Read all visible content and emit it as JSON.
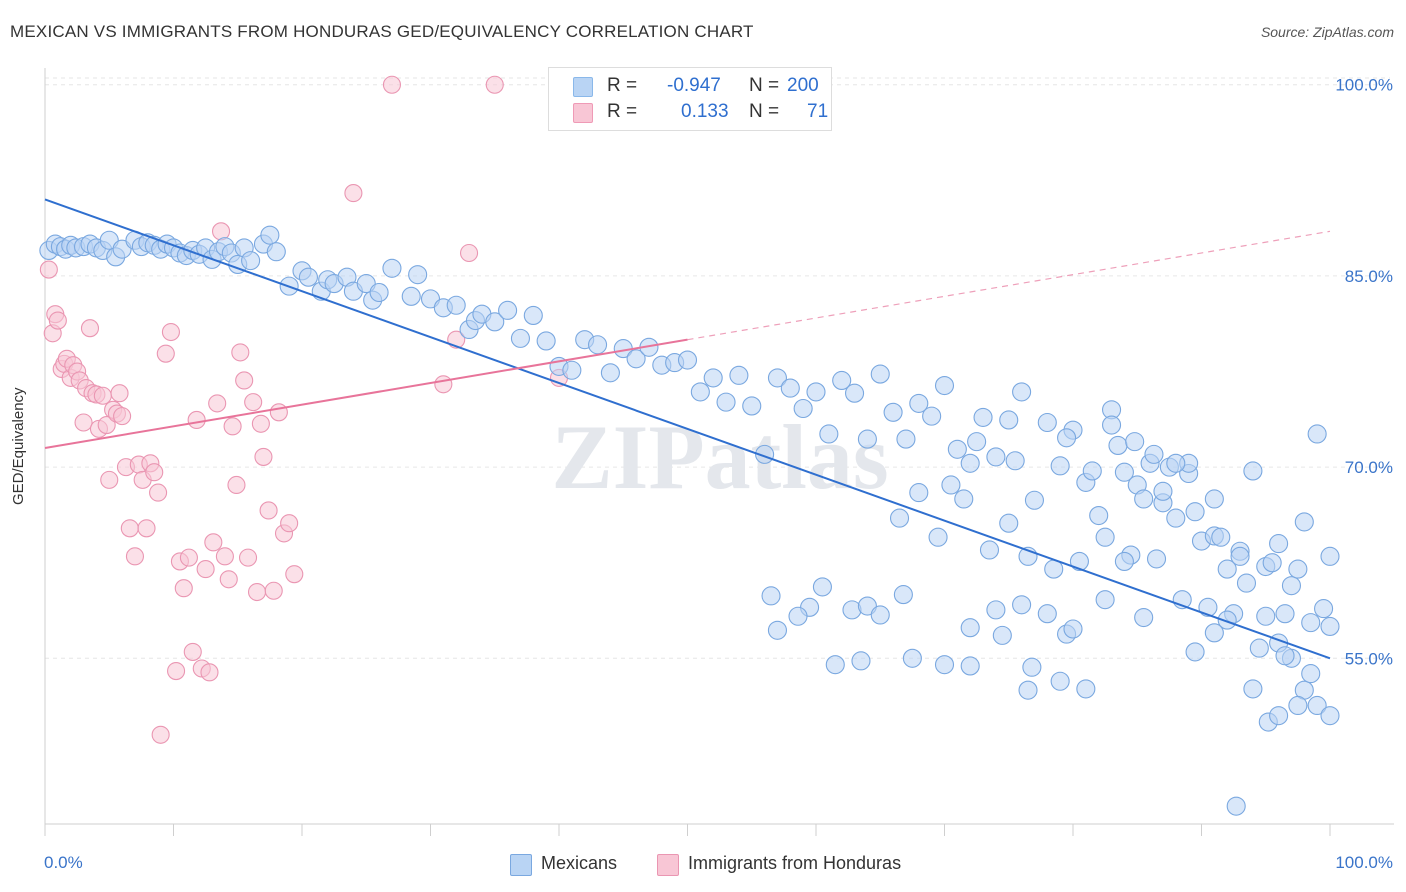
{
  "title": "MEXICAN VS IMMIGRANTS FROM HONDURAS GED/EQUIVALENCY CORRELATION CHART",
  "source": "Source: ZipAtlas.com",
  "watermark": "ZIPatlas",
  "stats": [
    {
      "r_label": "R =",
      "r_value": "-0.947",
      "n_label": "N =",
      "n_value": "200",
      "color": "#8ab8ea",
      "fill": "#b9d4f4"
    },
    {
      "r_label": "R =",
      "r_value": "0.133",
      "n_label": "N =",
      "n_value": "71",
      "color": "#ef9ab6",
      "fill": "#f8c6d5"
    }
  ],
  "legend": [
    {
      "label": "Mexicans",
      "color": "#b9d4f4",
      "stroke": "#7aa8e0"
    },
    {
      "label": "Immigrants from Honduras",
      "color": "#f8c6d5",
      "stroke": "#ea96b2"
    }
  ],
  "chart_data": {
    "type": "scatter",
    "title": "MEXICAN VS IMMIGRANTS FROM HONDURAS GED/EQUIVALENCY CORRELATION CHART",
    "xlabel": "",
    "ylabel": "GED/Equivalency",
    "xlim": [
      0,
      100
    ],
    "ylim": [
      42,
      101
    ],
    "x_tick_labels": [
      "0.0%",
      "100.0%"
    ],
    "y_ticks": [
      55,
      70,
      85,
      100
    ],
    "y_tick_labels": [
      "55.0%",
      "70.0%",
      "85.0%",
      "100.0%"
    ],
    "grid": true,
    "legend_position": "bottom-center",
    "series": [
      {
        "name": "Mexicans",
        "color": "#7aa8e0",
        "trend": {
          "x": [
            0,
            100
          ],
          "y": [
            91.0,
            55.0
          ]
        },
        "points": [
          [
            0.3,
            87.0
          ],
          [
            0.8,
            87.5
          ],
          [
            1.2,
            87.3
          ],
          [
            1.6,
            87.1
          ],
          [
            2.0,
            87.4
          ],
          [
            2.4,
            87.2
          ],
          [
            3.0,
            87.3
          ],
          [
            3.5,
            87.5
          ],
          [
            4.0,
            87.2
          ],
          [
            4.5,
            87.0
          ],
          [
            5.0,
            87.8
          ],
          [
            5.5,
            86.5
          ],
          [
            6.0,
            87.1
          ],
          [
            7.0,
            87.8
          ],
          [
            7.5,
            87.3
          ],
          [
            8.0,
            87.6
          ],
          [
            8.5,
            87.4
          ],
          [
            9.0,
            87.1
          ],
          [
            9.5,
            87.5
          ],
          [
            10.0,
            87.2
          ],
          [
            10.5,
            86.8
          ],
          [
            11.0,
            86.6
          ],
          [
            11.5,
            87.0
          ],
          [
            12.0,
            86.7
          ],
          [
            12.5,
            87.2
          ],
          [
            13.0,
            86.3
          ],
          [
            13.5,
            86.9
          ],
          [
            14.0,
            87.3
          ],
          [
            14.5,
            86.8
          ],
          [
            15.0,
            85.9
          ],
          [
            15.5,
            87.2
          ],
          [
            16.0,
            86.2
          ],
          [
            17.0,
            87.5
          ],
          [
            17.5,
            88.2
          ],
          [
            18.0,
            86.9
          ],
          [
            19.0,
            84.2
          ],
          [
            20.0,
            85.4
          ],
          [
            20.5,
            84.9
          ],
          [
            21.5,
            83.8
          ],
          [
            22.0,
            84.7
          ],
          [
            22.5,
            84.4
          ],
          [
            23.5,
            84.9
          ],
          [
            24.0,
            83.8
          ],
          [
            25.0,
            84.4
          ],
          [
            25.5,
            83.1
          ],
          [
            26.0,
            83.7
          ],
          [
            27.0,
            85.6
          ],
          [
            28.5,
            83.4
          ],
          [
            29.0,
            85.1
          ],
          [
            30.0,
            83.2
          ],
          [
            31.0,
            82.5
          ],
          [
            32.0,
            82.7
          ],
          [
            33.0,
            80.8
          ],
          [
            33.5,
            81.5
          ],
          [
            34.0,
            82.0
          ],
          [
            35.0,
            81.4
          ],
          [
            36.0,
            82.3
          ],
          [
            37.0,
            80.1
          ],
          [
            38.0,
            81.9
          ],
          [
            39.0,
            79.9
          ],
          [
            40.0,
            77.9
          ],
          [
            41.0,
            77.6
          ],
          [
            42.0,
            80.0
          ],
          [
            43.0,
            79.6
          ],
          [
            44.0,
            77.4
          ],
          [
            45.0,
            79.3
          ],
          [
            46.0,
            78.5
          ],
          [
            47.0,
            79.4
          ],
          [
            48.0,
            78.0
          ],
          [
            49.0,
            78.2
          ],
          [
            50.0,
            78.4
          ],
          [
            51.0,
            75.9
          ],
          [
            52.0,
            77.0
          ],
          [
            53.0,
            75.1
          ],
          [
            54.0,
            77.2
          ],
          [
            55.0,
            74.8
          ],
          [
            56.0,
            71.0
          ],
          [
            57.0,
            77.0
          ],
          [
            58.0,
            76.2
          ],
          [
            59.0,
            74.6
          ],
          [
            60.0,
            75.9
          ],
          [
            61.0,
            72.6
          ],
          [
            62.0,
            76.8
          ],
          [
            63.0,
            75.8
          ],
          [
            64.0,
            72.2
          ],
          [
            65.0,
            77.3
          ],
          [
            66.0,
            74.3
          ],
          [
            67.0,
            72.2
          ],
          [
            68.0,
            75.0
          ],
          [
            69.0,
            74.0
          ],
          [
            70.0,
            76.4
          ],
          [
            71.0,
            71.4
          ],
          [
            72.0,
            70.3
          ],
          [
            73.0,
            73.9
          ],
          [
            74.0,
            70.8
          ],
          [
            75.0,
            73.7
          ],
          [
            76.0,
            75.9
          ],
          [
            77.0,
            67.4
          ],
          [
            78.0,
            73.5
          ],
          [
            79.0,
            70.1
          ],
          [
            80.0,
            72.9
          ],
          [
            81.0,
            68.8
          ],
          [
            82.0,
            66.2
          ],
          [
            83.0,
            74.5
          ],
          [
            84.0,
            69.6
          ],
          [
            85.0,
            68.6
          ],
          [
            86.0,
            70.3
          ],
          [
            87.0,
            67.2
          ],
          [
            88.0,
            66.0
          ],
          [
            89.0,
            69.5
          ],
          [
            90.0,
            64.2
          ],
          [
            91.0,
            64.6
          ],
          [
            92.0,
            62.0
          ],
          [
            93.0,
            63.4
          ],
          [
            94.0,
            69.7
          ],
          [
            95.0,
            62.2
          ],
          [
            96.0,
            64.0
          ],
          [
            97.0,
            60.7
          ],
          [
            98.0,
            65.7
          ],
          [
            99.0,
            72.6
          ],
          [
            100.0,
            63.0
          ],
          [
            68.0,
            68.0
          ],
          [
            70.5,
            68.6
          ],
          [
            72.5,
            72.0
          ],
          [
            75.5,
            70.5
          ],
          [
            79.5,
            72.3
          ],
          [
            81.5,
            69.7
          ],
          [
            83.5,
            71.7
          ],
          [
            85.5,
            67.5
          ],
          [
            87.5,
            70.0
          ],
          [
            89.5,
            66.5
          ],
          [
            91.5,
            64.5
          ],
          [
            93.5,
            60.9
          ],
          [
            95.5,
            62.5
          ],
          [
            97.5,
            62.0
          ],
          [
            99.5,
            58.9
          ],
          [
            66.5,
            66.0
          ],
          [
            69.5,
            64.5
          ],
          [
            71.5,
            67.5
          ],
          [
            73.5,
            63.5
          ],
          [
            75.0,
            65.6
          ],
          [
            76.5,
            63.0
          ],
          [
            78.5,
            62.0
          ],
          [
            80.5,
            62.6
          ],
          [
            82.5,
            64.5
          ],
          [
            84.5,
            63.1
          ],
          [
            86.5,
            62.8
          ],
          [
            88.5,
            59.6
          ],
          [
            90.5,
            59.0
          ],
          [
            92.5,
            58.5
          ],
          [
            94.5,
            55.8
          ],
          [
            96.5,
            58.5
          ],
          [
            98.5,
            57.8
          ],
          [
            100.0,
            57.5
          ],
          [
            67.5,
            55.0
          ],
          [
            72.0,
            54.4
          ],
          [
            74.5,
            56.8
          ],
          [
            76.5,
            52.5
          ],
          [
            79.0,
            53.2
          ],
          [
            81.0,
            52.6
          ],
          [
            82.5,
            59.6
          ],
          [
            84.0,
            62.6
          ],
          [
            85.5,
            58.2
          ],
          [
            87.0,
            68.1
          ],
          [
            89.0,
            70.3
          ],
          [
            91.0,
            67.5
          ],
          [
            93.0,
            63.0
          ],
          [
            95.0,
            58.3
          ],
          [
            96.0,
            56.2
          ],
          [
            97.0,
            55.0
          ],
          [
            98.0,
            52.5
          ],
          [
            99.0,
            51.3
          ],
          [
            100.0,
            50.5
          ],
          [
            95.2,
            50.0
          ],
          [
            96.0,
            50.5
          ],
          [
            97.5,
            51.3
          ],
          [
            98.5,
            53.8
          ],
          [
            70.0,
            54.5
          ],
          [
            76.8,
            54.3
          ],
          [
            79.5,
            56.9
          ],
          [
            61.5,
            54.5
          ],
          [
            59.5,
            59.0
          ],
          [
            57.0,
            57.2
          ],
          [
            56.5,
            59.9
          ],
          [
            60.5,
            60.6
          ],
          [
            62.8,
            58.8
          ],
          [
            64.0,
            59.1
          ],
          [
            65.0,
            58.4
          ],
          [
            66.8,
            60.0
          ],
          [
            58.6,
            58.3
          ],
          [
            63.5,
            54.8
          ],
          [
            92.7,
            43.4
          ],
          [
            88.0,
            70.3
          ],
          [
            86.3,
            71.0
          ],
          [
            84.8,
            72.0
          ],
          [
            83.0,
            73.3
          ],
          [
            89.5,
            55.5
          ],
          [
            91.0,
            57.0
          ],
          [
            92.0,
            58.0
          ],
          [
            94.0,
            52.6
          ],
          [
            96.5,
            55.2
          ],
          [
            80.0,
            57.3
          ],
          [
            78.0,
            58.5
          ],
          [
            76.0,
            59.2
          ],
          [
            74.0,
            58.8
          ],
          [
            72.0,
            57.4
          ]
        ]
      },
      {
        "name": "Immigrants from Honduras",
        "color": "#ea96b2",
        "trend": {
          "x": [
            0,
            50
          ],
          "y": [
            71.5,
            80.0
          ]
        },
        "trend_dashed": {
          "x": [
            50,
            100
          ],
          "y": [
            80.0,
            88.5
          ]
        },
        "points": [
          [
            0.3,
            85.5
          ],
          [
            0.6,
            80.5
          ],
          [
            0.8,
            82.0
          ],
          [
            1.0,
            81.5
          ],
          [
            1.3,
            77.7
          ],
          [
            1.5,
            78.1
          ],
          [
            1.7,
            78.5
          ],
          [
            2.0,
            77.0
          ],
          [
            2.2,
            78.0
          ],
          [
            2.5,
            77.5
          ],
          [
            2.7,
            76.8
          ],
          [
            3.0,
            73.5
          ],
          [
            3.2,
            76.2
          ],
          [
            3.5,
            80.9
          ],
          [
            3.7,
            75.8
          ],
          [
            4.0,
            75.7
          ],
          [
            4.2,
            73.0
          ],
          [
            4.5,
            75.6
          ],
          [
            4.8,
            73.3
          ],
          [
            5.0,
            69.0
          ],
          [
            5.3,
            74.5
          ],
          [
            5.6,
            74.2
          ],
          [
            5.8,
            75.8
          ],
          [
            6.0,
            74.0
          ],
          [
            6.3,
            70.0
          ],
          [
            6.6,
            65.2
          ],
          [
            7.0,
            63.0
          ],
          [
            7.3,
            70.2
          ],
          [
            7.6,
            69.0
          ],
          [
            7.9,
            65.2
          ],
          [
            8.2,
            70.3
          ],
          [
            8.5,
            69.6
          ],
          [
            8.8,
            68.0
          ],
          [
            9.0,
            49.0
          ],
          [
            9.4,
            78.9
          ],
          [
            9.8,
            80.6
          ],
          [
            10.2,
            54.0
          ],
          [
            10.5,
            62.6
          ],
          [
            10.8,
            60.5
          ],
          [
            11.2,
            62.9
          ],
          [
            11.5,
            55.5
          ],
          [
            11.8,
            73.7
          ],
          [
            12.2,
            54.2
          ],
          [
            12.5,
            62.0
          ],
          [
            12.8,
            53.9
          ],
          [
            13.1,
            64.1
          ],
          [
            13.4,
            75.0
          ],
          [
            13.7,
            88.5
          ],
          [
            14.0,
            63.0
          ],
          [
            14.3,
            61.2
          ],
          [
            14.6,
            73.2
          ],
          [
            14.9,
            68.6
          ],
          [
            15.2,
            79.0
          ],
          [
            15.5,
            76.8
          ],
          [
            15.8,
            62.9
          ],
          [
            16.2,
            75.1
          ],
          [
            16.5,
            60.2
          ],
          [
            16.8,
            73.4
          ],
          [
            17.0,
            70.8
          ],
          [
            17.4,
            66.6
          ],
          [
            17.8,
            60.3
          ],
          [
            18.2,
            74.3
          ],
          [
            18.6,
            64.8
          ],
          [
            19.0,
            65.6
          ],
          [
            19.4,
            61.6
          ],
          [
            24.0,
            91.5
          ],
          [
            27.0,
            100.0
          ],
          [
            31.0,
            76.5
          ],
          [
            32.0,
            80.0
          ],
          [
            33.0,
            86.8
          ],
          [
            35.0,
            100.0
          ],
          [
            40.0,
            77.0
          ]
        ]
      }
    ]
  }
}
